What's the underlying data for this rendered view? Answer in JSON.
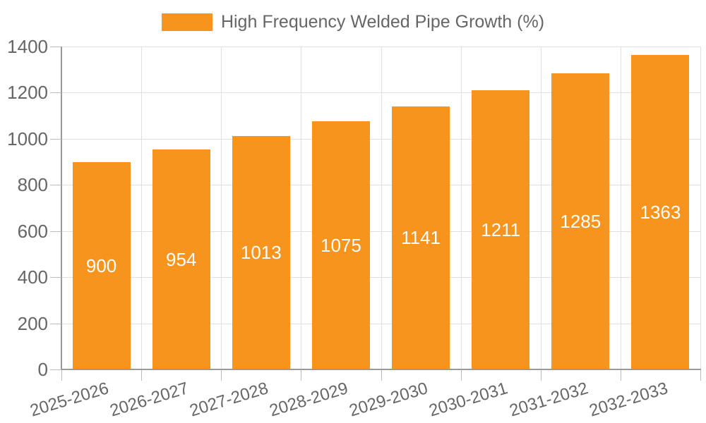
{
  "legend": {
    "label": "High Frequency Welded Pipe Growth (%)"
  },
  "colors": {
    "bar": "#F7941E",
    "bar_value_text": "#FFFFFF",
    "axis_text": "#666666",
    "axis_line": "#999999",
    "tick_line": "#BBBBBB",
    "grid_line": "#E0E0E0",
    "background": "#FFFFFF"
  },
  "chart_data": {
    "type": "bar",
    "title": "",
    "categories": [
      "2025-2026",
      "2026-2027",
      "2027-2028",
      "2028-2029",
      "2029-2030",
      "2030-2031",
      "2031-2032",
      "2032-2033"
    ],
    "series": [
      {
        "name": "High Frequency Welded Pipe Growth (%)",
        "color": "#F7941E",
        "values": [
          900,
          954,
          1013,
          1075,
          1141,
          1211,
          1285,
          1363
        ]
      }
    ],
    "xlabel": "",
    "ylabel": "",
    "ylim": [
      0,
      1400
    ],
    "yticks": [
      0,
      200,
      400,
      600,
      800,
      1000,
      1200,
      1400
    ],
    "grid": true,
    "legend_position": "top-center",
    "value_label_position": "inside-center",
    "x_tick_label_rotation_deg": -17
  }
}
